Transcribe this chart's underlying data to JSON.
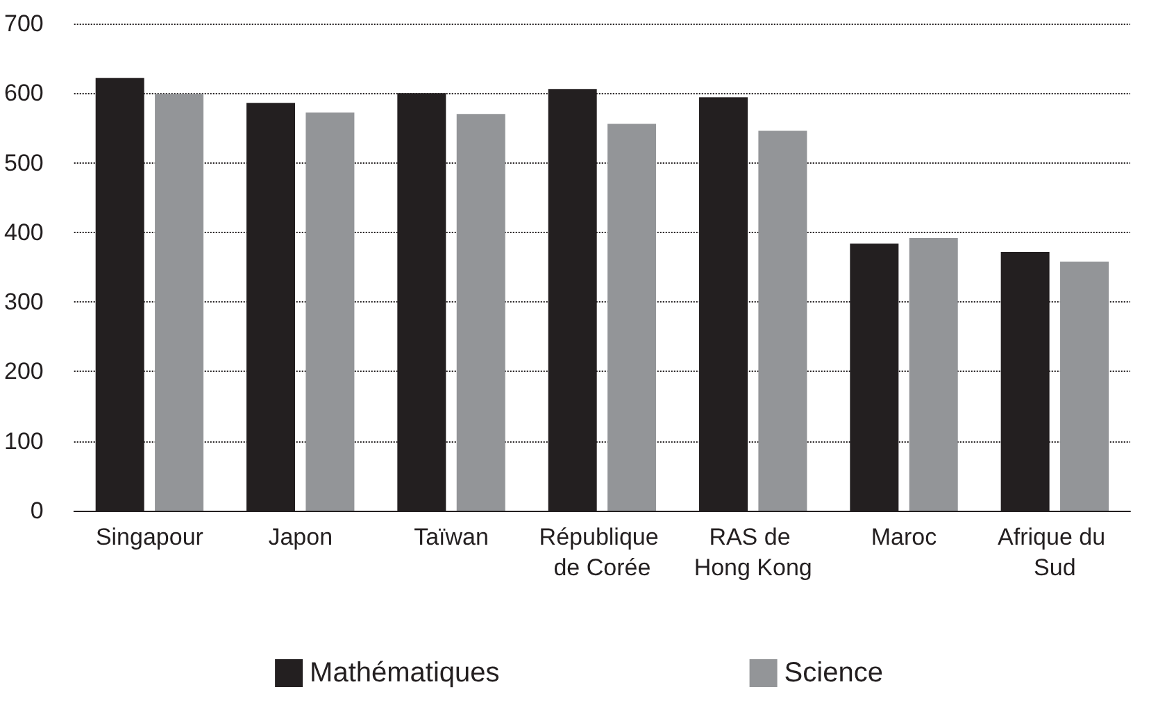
{
  "chart_data": {
    "type": "bar",
    "categories": [
      "Singapour",
      "Japon",
      "Taïwan",
      "République de Corée",
      "RAS de Hong Kong",
      "Maroc",
      "Afrique du Sud"
    ],
    "series": [
      {
        "name": "Mathématiques",
        "color": "#231f20",
        "values": [
          622,
          586,
          600,
          606,
          594,
          384,
          372
        ]
      },
      {
        "name": "Science",
        "color": "#939598",
        "values": [
          599,
          572,
          570,
          556,
          546,
          392,
          358
        ]
      }
    ],
    "ylim": [
      0,
      700
    ],
    "yticks": [
      0,
      100,
      200,
      300,
      400,
      500,
      600,
      700
    ],
    "grid": "y",
    "legend": "bottom"
  }
}
